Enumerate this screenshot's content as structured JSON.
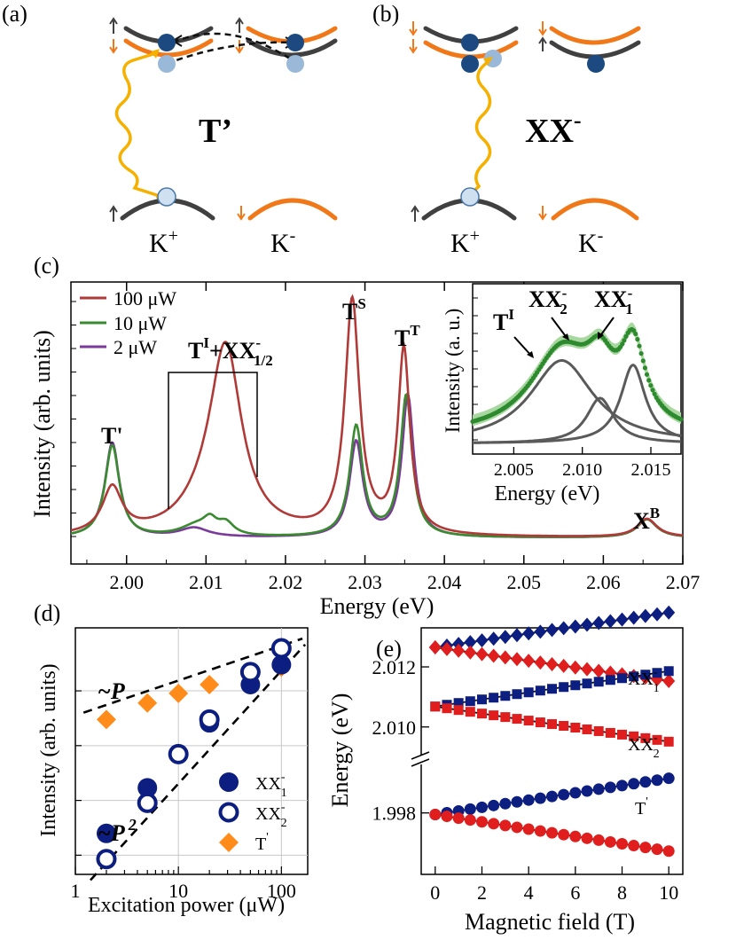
{
  "panels": {
    "a": {
      "label": "(a)",
      "center_label": "T’",
      "valley_left": "K",
      "valley_right": "K",
      "sup_left": "+",
      "sup_right": "-"
    },
    "b": {
      "label": "(b)",
      "center_label": "XX",
      "center_sup": "-",
      "valley_left": "K",
      "valley_right": "K",
      "sup_left": "+",
      "sup_right": "-"
    },
    "c": {
      "label": "(c)"
    },
    "d": {
      "label": "(d)",
      "fit_linear": "~P",
      "fit_quadratic": "~P",
      "fit_quadratic_exp": "2"
    },
    "e": {
      "label": "(e)"
    }
  },
  "colors": {
    "spin_up_band": "#404040",
    "spin_down_band": "#f07818",
    "photon": "#f5b000",
    "p100": "#b03a38",
    "p10": "#3a8a30",
    "p2": "#7a3a9a",
    "inset_data": "#2e8a2e",
    "inset_band": "#a8d8a0",
    "navy": "#0c1e80",
    "tprime": "#ff8c1a",
    "red": "#e01e1e",
    "blue": "#2030a0"
  },
  "chart_data": [
    {
      "type": "line",
      "panel": "c",
      "xlabel": "Energy (eV)",
      "ylabel": "Intensity (arb. units)",
      "xlim": [
        1.993,
        2.07
      ],
      "xticks": [
        "2.00",
        "2.01",
        "2.02",
        "2.03",
        "2.04",
        "2.05",
        "2.06",
        "2.07"
      ],
      "legend": [
        "100 μW",
        "10 μW",
        "2 μW"
      ],
      "legend_position": "top-left",
      "annotations": {
        "tprime": "T'",
        "ti_xx": "T",
        "ti_xx_sup": "I",
        "ti_xx_plus": "+XX",
        "ti_xx_sup2": "-",
        "ti_xx_sub": "1/2",
        "ts": "T",
        "ts_sup": "S",
        "tt": "T",
        "tt_sup": "T",
        "xb": "X",
        "xb_sup": "B"
      },
      "series": [
        {
          "name": "100 μW",
          "peaks": [
            [
              1.9982,
              0.075,
              0.0015
            ],
            [
              2.0125,
              0.285,
              0.0024
            ],
            [
              2.0105,
              0.04,
              0.004
            ],
            [
              2.0284,
              0.38,
              0.0011
            ],
            [
              2.0349,
              0.3,
              0.0009
            ],
            [
              2.0655,
              0.03,
              0.0015
            ]
          ],
          "background": [
            [
              2.0205,
              0.0655,
              0.017,
              0.03
            ]
          ]
        },
        {
          "name": "10 μW",
          "peaks": [
            [
              1.9982,
              0.15,
              0.0011
            ],
            [
              2.0088,
              0.018,
              0.0025
            ],
            [
              2.0105,
              0.02,
              0.001
            ],
            [
              2.0125,
              0.019,
              0.0012
            ],
            [
              2.0289,
              0.18,
              0.001
            ],
            [
              2.0352,
              0.23,
              0.0009
            ],
            [
              2.0655,
              0.03,
              0.0015
            ]
          ],
          "background": [
            [
              2.0205,
              0.0655,
              0.017,
              0.03
            ]
          ]
        },
        {
          "name": "2 μW",
          "peaks": [
            [
              1.9982,
              0.155,
              0.0011
            ],
            [
              2.0085,
              0.015,
              0.0022
            ],
            [
              2.0289,
              0.155,
              0.001
            ],
            [
              2.0354,
              0.23,
              0.0009
            ],
            [
              2.0655,
              0.03,
              0.0015
            ]
          ],
          "background": [
            [
              2.0205,
              0.0655,
              0.017,
              0.03
            ]
          ]
        }
      ]
    },
    {
      "type": "line",
      "panel": "c-inset",
      "xlabel": "Energy (eV)",
      "ylabel": "Intensity (a. u.)",
      "xlim": [
        2.002,
        2.0172
      ],
      "xticks": [
        "2.005",
        "2.010",
        "2.015"
      ],
      "labels": {
        "ti": "T",
        "ti_sup": "I",
        "xx2": "XX",
        "xx2_sup": "-",
        "xx2_sub": "2",
        "xx1": "XX",
        "xx1_sup": "-",
        "xx1_sub": "1"
      },
      "components": [
        [
          2.0085,
          0.55,
          0.0028
        ],
        [
          2.0113,
          0.3,
          0.0012
        ],
        [
          2.0137,
          0.52,
          0.0011
        ]
      ],
      "baseline": 0.08
    },
    {
      "type": "scatter",
      "panel": "d",
      "xscale": "log",
      "yscale": "log",
      "xlabel": "Excitation power (μW)",
      "ylabel": "Intensity (arb. units)",
      "xlim": [
        1,
        180
      ],
      "xticks": [
        "1",
        "10",
        "100"
      ],
      "legend_position": "bottom-right",
      "series": [
        {
          "name": "XX",
          "sub": "1",
          "sup": "-",
          "marker": "filled-circle",
          "x": [
            2,
            5,
            10,
            20,
            50,
            100
          ],
          "y": [
            0.0025,
            0.017,
            0.07,
            0.26,
            1.3,
            3.0
          ]
        },
        {
          "name": "XX",
          "sub": "2",
          "sup": "-",
          "marker": "open-circle",
          "x": [
            2,
            5,
            10,
            20,
            50,
            100
          ],
          "y": [
            0.00085,
            0.009,
            0.07,
            0.3,
            2.2,
            6.0
          ]
        },
        {
          "name": "T",
          "sup": "'",
          "marker": "diamond",
          "x": [
            2,
            5,
            10,
            20,
            100
          ],
          "y": [
            0.3,
            0.6,
            0.9,
            1.3,
            2.7
          ]
        }
      ],
      "fits": [
        {
          "name": "~P",
          "slope": 1,
          "x": [
            1.2,
            160
          ],
          "y": [
            0.4,
            9.0
          ]
        },
        {
          "name": "~P²",
          "slope": 2,
          "x": [
            1.4,
            170
          ],
          "y": [
            0.00035,
            7.0
          ]
        }
      ]
    },
    {
      "type": "scatter",
      "panel": "e",
      "xlabel": "Magnetic field (T)",
      "ylabel": "Energy (eV)",
      "xlim": [
        -0.6,
        10.6
      ],
      "xticks": [
        "0",
        "2",
        "4",
        "6",
        "8",
        "10"
      ],
      "yticks": [
        "1.998",
        "2.010",
        "2.012"
      ],
      "upper_ylim": [
        2.0089,
        2.0133
      ],
      "lower_ylim": [
        1.9961,
        1.9995
      ],
      "labels": {
        "xx1": "XX",
        "xx1_sup": "-",
        "xx1_sub": "1",
        "xx2": "XX",
        "xx2_sup": "-",
        "xx2_sub": "2",
        "tp": "T",
        "tp_sup": "'"
      },
      "series": [
        {
          "name": "XX1 σ+",
          "marker": "diamond",
          "color": "navy",
          "E0": 2.01265,
          "slope": 0.000116
        },
        {
          "name": "XX1 σ-",
          "marker": "diamond",
          "color": "red",
          "E0": 2.01265,
          "slope": -0.000112
        },
        {
          "name": "XX2 σ+",
          "marker": "square",
          "color": "navy",
          "E0": 2.01068,
          "slope": 0.000118
        },
        {
          "name": "XX2 σ-",
          "marker": "square",
          "color": "red",
          "E0": 2.01068,
          "slope": -0.000117
        },
        {
          "name": "T' σ+",
          "marker": "circle",
          "color": "navy",
          "E0": 1.99795,
          "slope": 0.000112
        },
        {
          "name": "T' σ-",
          "marker": "circle",
          "color": "red",
          "E0": 1.99795,
          "slope": -0.000113
        }
      ]
    }
  ]
}
